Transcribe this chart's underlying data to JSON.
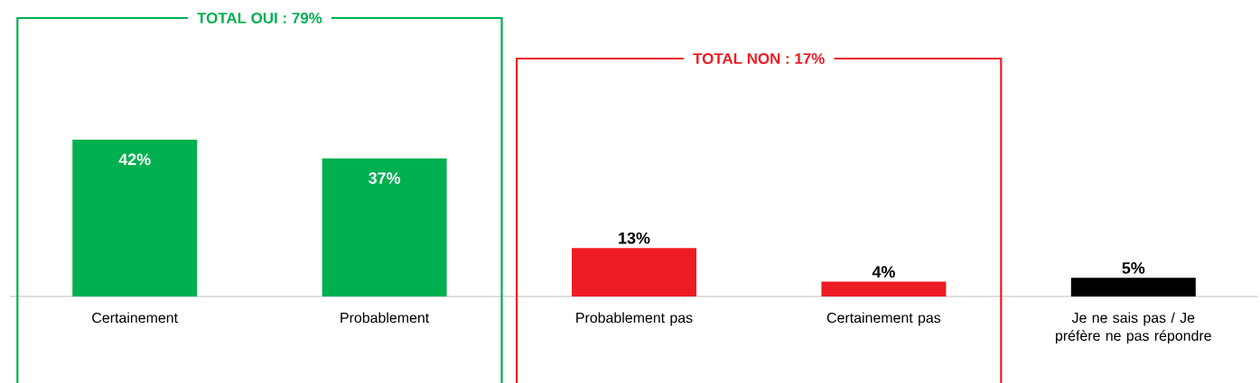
{
  "chart_data": {
    "type": "bar",
    "categories": [
      "Certainement",
      "Probablement",
      "Probablement pas",
      "Certainement pas",
      "Je ne sais pas / Je préfère ne pas répondre"
    ],
    "values": [
      42,
      37,
      13,
      4,
      5
    ],
    "colors": [
      "#00b050",
      "#00b050",
      "#ed1c24",
      "#ed1c24",
      "#000000"
    ],
    "value_labels": [
      "42%",
      "37%",
      "13%",
      "4%",
      "5%"
    ],
    "tick_labels": "x",
    "annotations": [
      "TOTAL OUI : 79%",
      "TOTAL NON : 17%"
    ]
  }
}
